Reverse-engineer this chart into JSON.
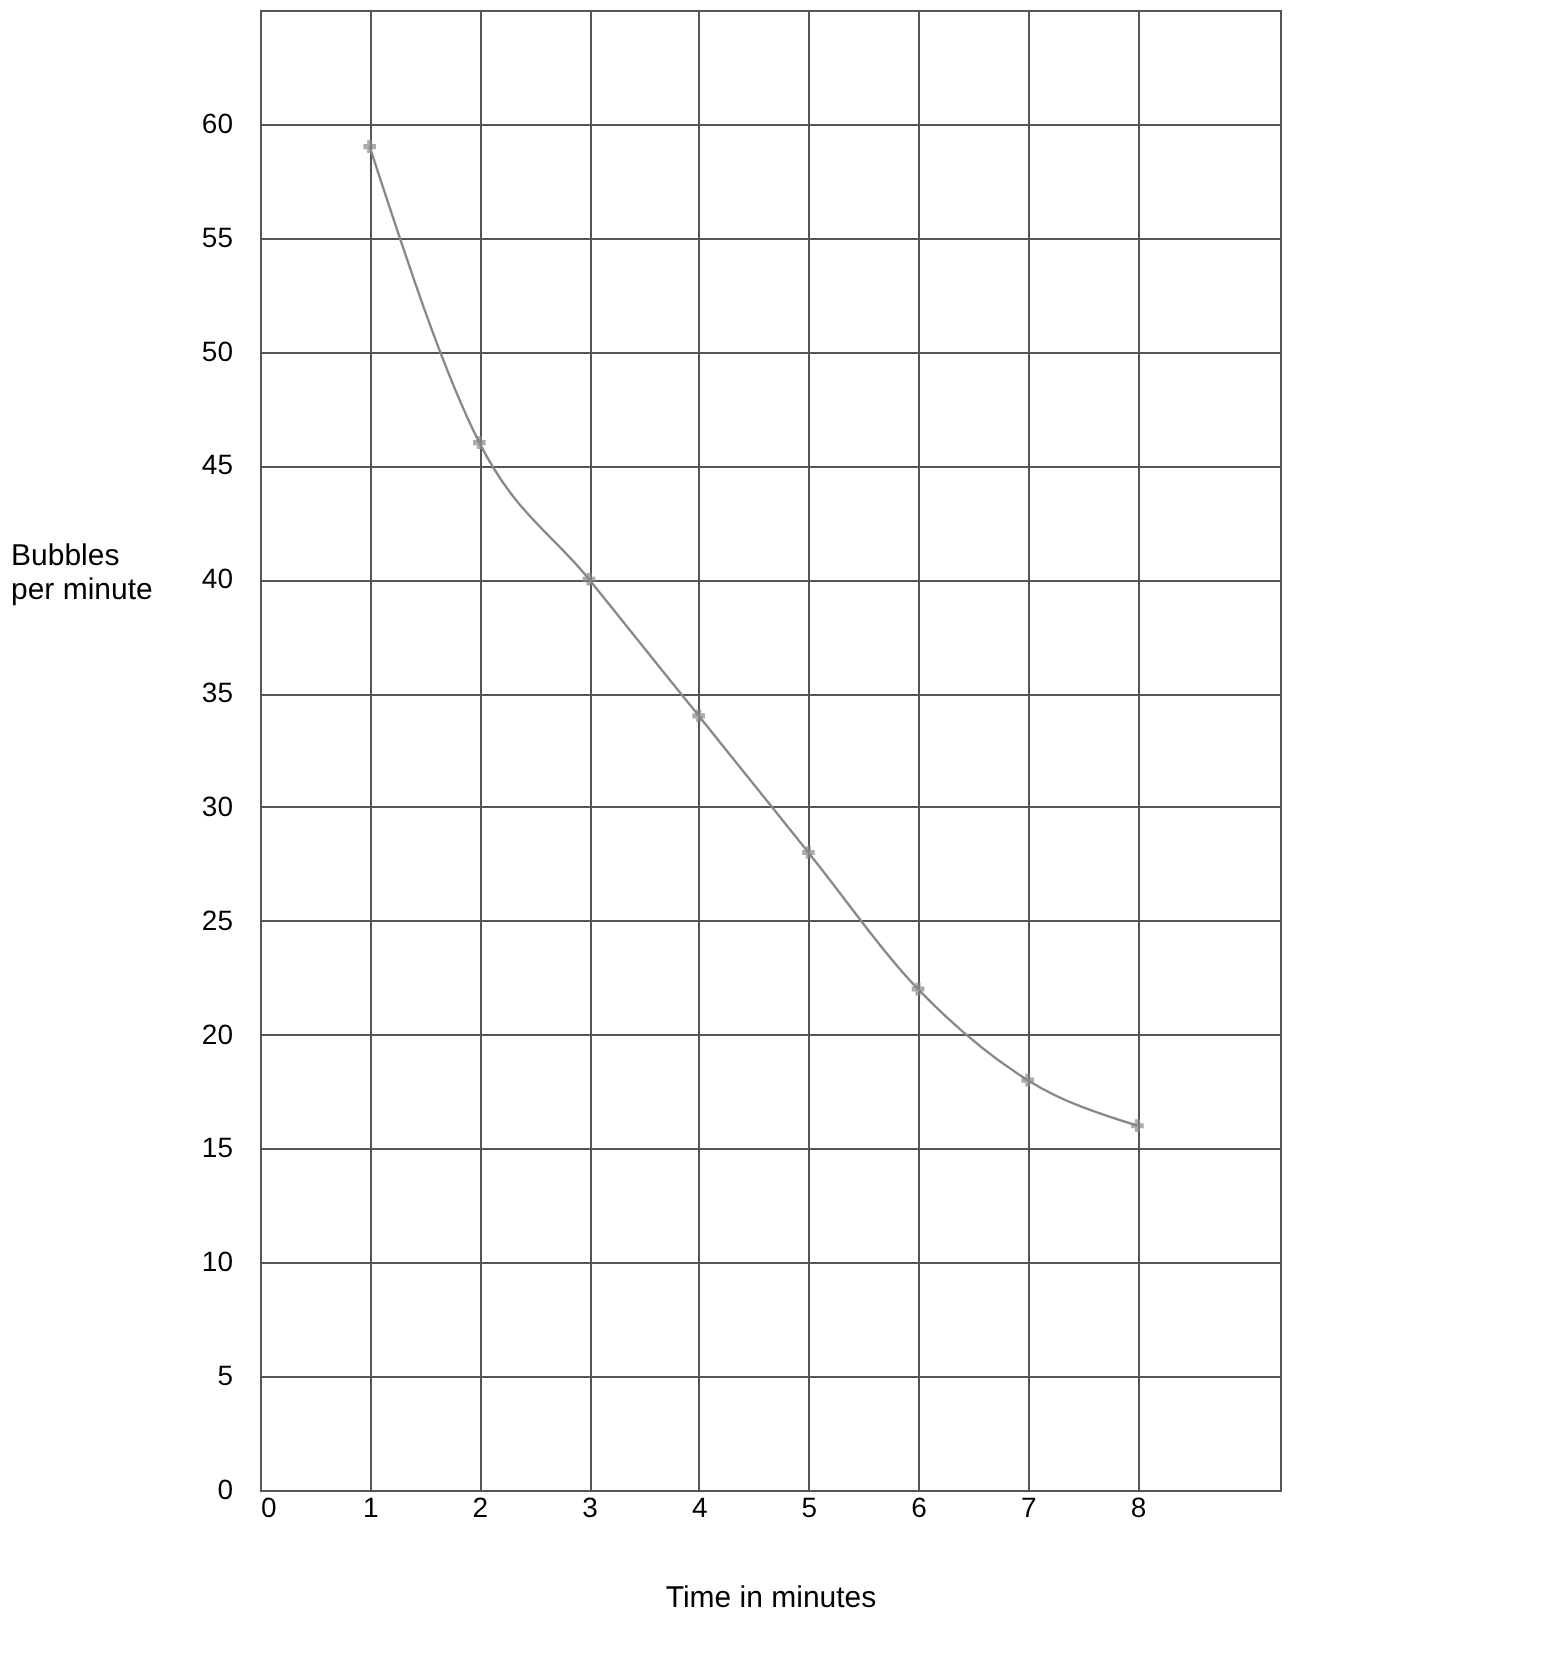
{
  "chart_data": {
    "type": "line",
    "xlabel": "Time in minutes",
    "ylabel": "Bubbles per minute",
    "x": [
      1,
      2,
      3,
      4,
      5,
      6,
      7,
      8
    ],
    "series": [
      {
        "color": "#888888",
        "values": [
          59,
          46,
          40,
          34,
          28,
          22,
          18,
          16
        ]
      }
    ],
    "xlim": [
      0,
      9.3
    ],
    "ylim": [
      0,
      65
    ],
    "xticks": [
      0,
      1,
      2,
      3,
      4,
      5,
      6,
      7,
      8
    ],
    "yticks": [
      0,
      5,
      10,
      15,
      20,
      25,
      30,
      35,
      40,
      45,
      50,
      55,
      60
    ],
    "grid": true,
    "marker": "cross",
    "line_style": "solid"
  }
}
